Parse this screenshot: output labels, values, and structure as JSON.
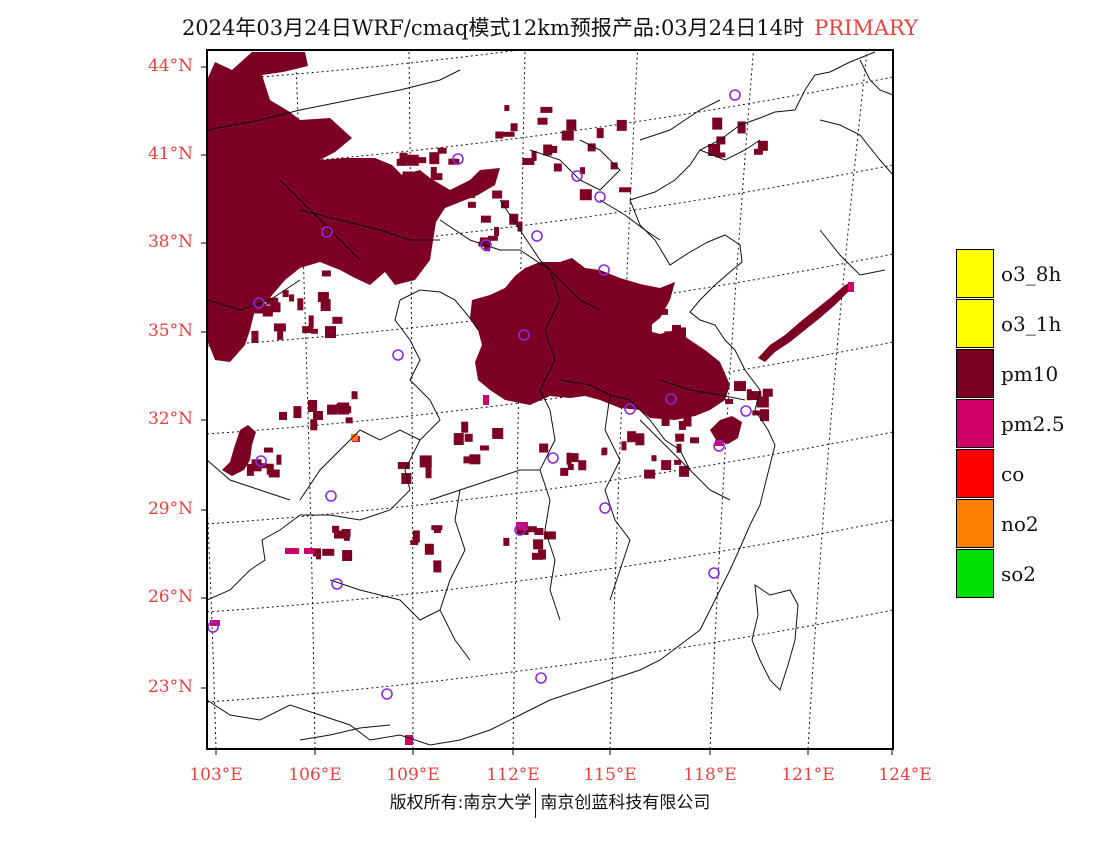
{
  "title": {
    "main": "2024年03月24日WRF/cmaq模式12km预报产品:03月24日14时",
    "tag": "PRIMARY"
  },
  "colors": {
    "pm10": "#7b0024",
    "pm25": "#cc0066",
    "no2": "#ff7f00",
    "station": "#8a2be2",
    "tick_label": "#e8423f"
  },
  "map": {
    "lat_labels": [
      "44°N",
      "41°N",
      "38°N",
      "35°N",
      "32°N",
      "29°N",
      "26°N",
      "23°N"
    ],
    "lon_labels": [
      "103°E",
      "106°E",
      "109°E",
      "112°E",
      "115°E",
      "118°E",
      "121°E",
      "124°E"
    ]
  },
  "legend": [
    {
      "label": "o3_8h",
      "color": "#ffff00"
    },
    {
      "label": "o3_1h",
      "color": "#ffff00"
    },
    {
      "label": "pm10",
      "color": "#7b0024"
    },
    {
      "label": "pm2.5",
      "color": "#cc0066"
    },
    {
      "label": "co",
      "color": "#ff0000"
    },
    {
      "label": "no2",
      "color": "#ff7f00"
    },
    {
      "label": "so2",
      "color": "#00e000"
    }
  ],
  "footer": {
    "left": "版权所有:南京大学",
    "right": "南京创蓝科技有限公司"
  }
}
